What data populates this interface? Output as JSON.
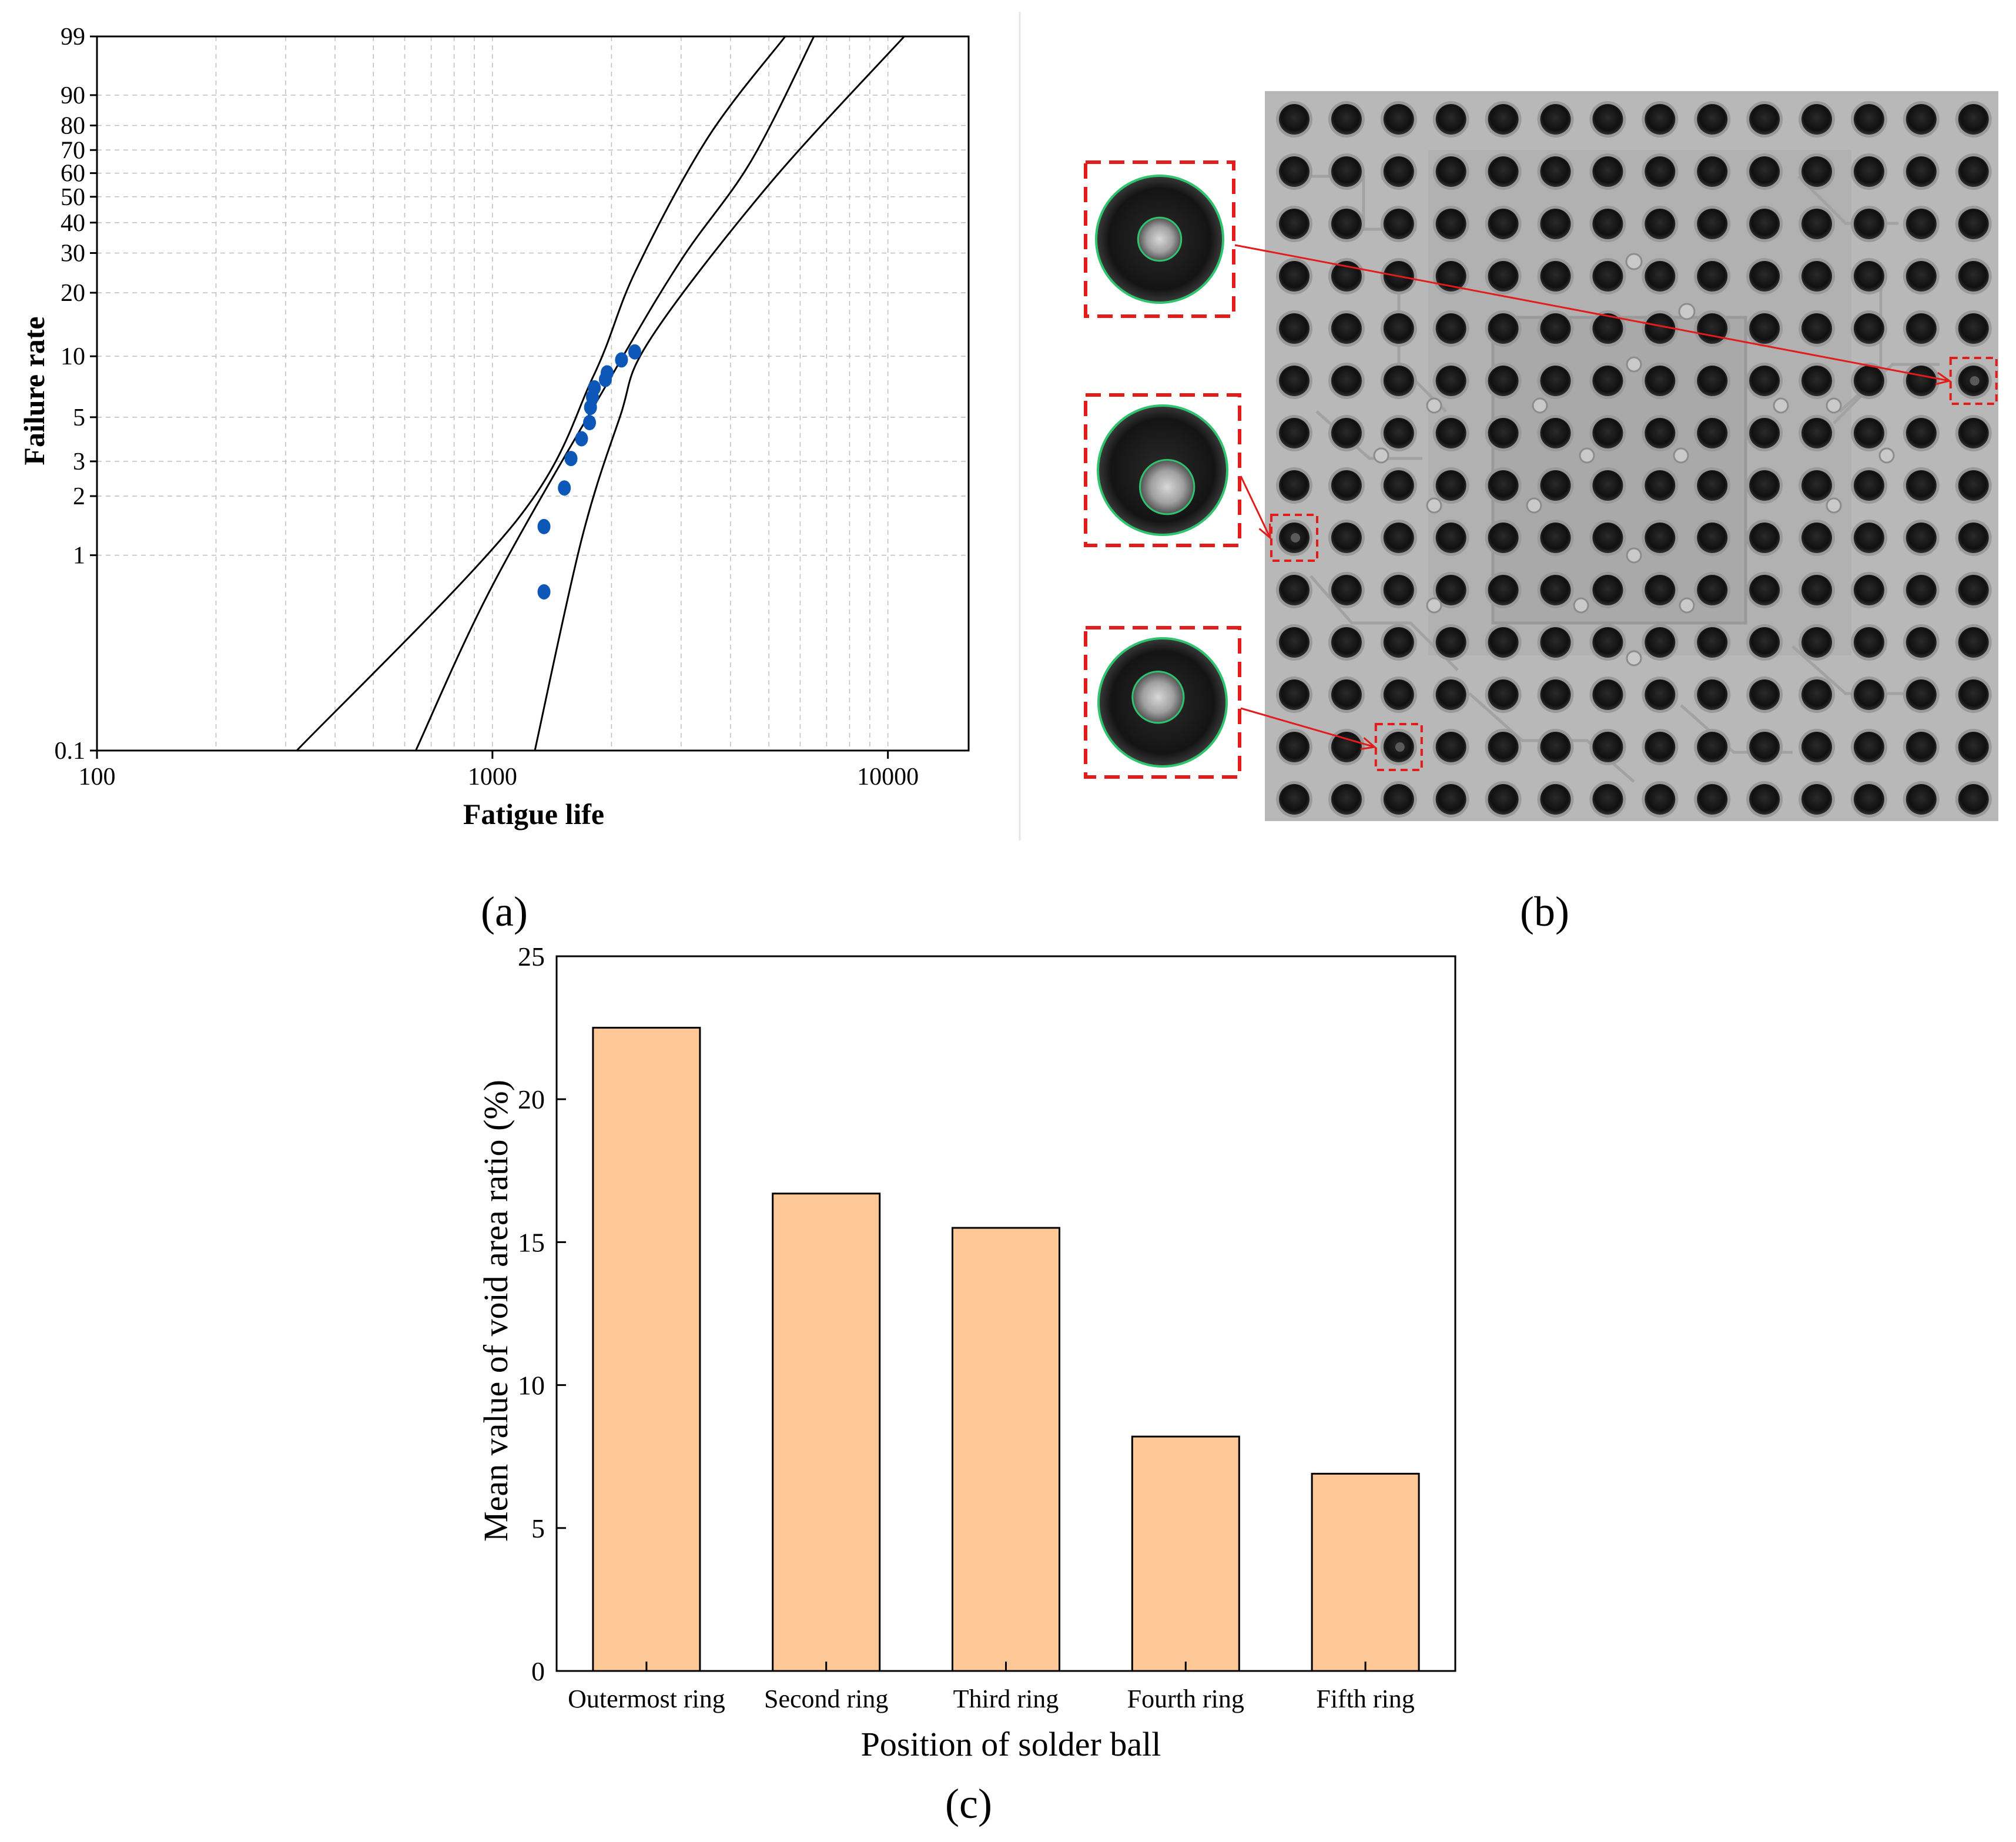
{
  "panel_labels": {
    "a": "(a)",
    "b": "(b)",
    "c": "(c)"
  },
  "colors": {
    "scatter_point": "#0d57b8",
    "bar_fill": "#fdc896",
    "bar_stroke": "#000000",
    "grid": "#bdbdbd",
    "highlight_box": "#e21b1b",
    "void_outline": "#2fc46e",
    "xray_background": "#b8b8b8",
    "solder_ball": "#111111"
  },
  "chart_data": [
    {
      "id": "a",
      "type": "scatter",
      "title": "",
      "xlabel": "Fatigue life",
      "ylabel": "Failure rate",
      "x_scale": "log",
      "y_scale": "weibull-probability",
      "xlim": [
        100,
        16000
      ],
      "ylim": [
        0.1,
        99
      ],
      "x_ticks": [
        100,
        1000,
        10000
      ],
      "x_tick_labels": [
        "100",
        "1000",
        "10000"
      ],
      "y_ticks": [
        0.1,
        1,
        2,
        3,
        5,
        10,
        20,
        30,
        40,
        50,
        60,
        70,
        80,
        90,
        99
      ],
      "y_tick_labels": [
        "0.1",
        "1",
        "2",
        "3",
        "5",
        "10",
        "20",
        "30",
        "40",
        "50",
        "60",
        "70",
        "80",
        "90",
        "99"
      ],
      "grid": true,
      "points": [
        {
          "x": 1350,
          "y": 0.65
        },
        {
          "x": 1350,
          "y": 1.4
        },
        {
          "x": 1520,
          "y": 2.2
        },
        {
          "x": 1580,
          "y": 3.1
        },
        {
          "x": 1680,
          "y": 3.9
        },
        {
          "x": 1760,
          "y": 4.7
        },
        {
          "x": 1770,
          "y": 5.6
        },
        {
          "x": 1790,
          "y": 6.3
        },
        {
          "x": 1810,
          "y": 7.0
        },
        {
          "x": 1930,
          "y": 7.7
        },
        {
          "x": 1950,
          "y": 8.3
        },
        {
          "x": 2120,
          "y": 9.6
        },
        {
          "x": 2290,
          "y": 10.5
        }
      ],
      "fit_lines": [
        {
          "name": "upper-confidence-bound",
          "points": [
            [
              320,
              0.1
            ],
            [
              1150,
              1.5
            ],
            [
              1800,
              8
            ],
            [
              2300,
              25
            ],
            [
              3500,
              75
            ],
            [
              5500,
              99
            ]
          ]
        },
        {
          "name": "median-fit",
          "points": [
            [
              640,
              0.1
            ],
            [
              1000,
              0.7
            ],
            [
              2000,
              8
            ],
            [
              3000,
              28
            ],
            [
              4500,
              65
            ],
            [
              6500,
              99
            ]
          ]
        },
        {
          "name": "lower-confidence-bound",
          "points": [
            [
              1280,
              0.1
            ],
            [
              1680,
              1.2
            ],
            [
              2100,
              5
            ],
            [
              2500,
              12
            ],
            [
              5000,
              55
            ],
            [
              11000,
              99
            ]
          ]
        }
      ]
    },
    {
      "id": "c",
      "type": "bar",
      "title": "",
      "xlabel": "Position of solder ball",
      "ylabel": "Mean value of void area ratio (%)",
      "categories": [
        "Outermost ring",
        "Second ring",
        "Third ring",
        "Fourth ring",
        "Fifth ring"
      ],
      "values": [
        22.5,
        16.7,
        15.5,
        8.2,
        6.9
      ],
      "ylim": [
        0,
        25
      ],
      "y_ticks": [
        0,
        5,
        10,
        15,
        20,
        25
      ],
      "y_tick_labels": [
        "0",
        "5",
        "10",
        "15",
        "20",
        "25"
      ],
      "grid": false,
      "legend": "none"
    }
  ],
  "xray_image": {
    "grid_rows": 14,
    "grid_cols": 14,
    "highlighted_balls": [
      {
        "row": 5,
        "col": 13,
        "inset": 0
      },
      {
        "row": 8,
        "col": 0,
        "inset": 1
      },
      {
        "row": 12,
        "col": 2,
        "inset": 2
      }
    ]
  }
}
